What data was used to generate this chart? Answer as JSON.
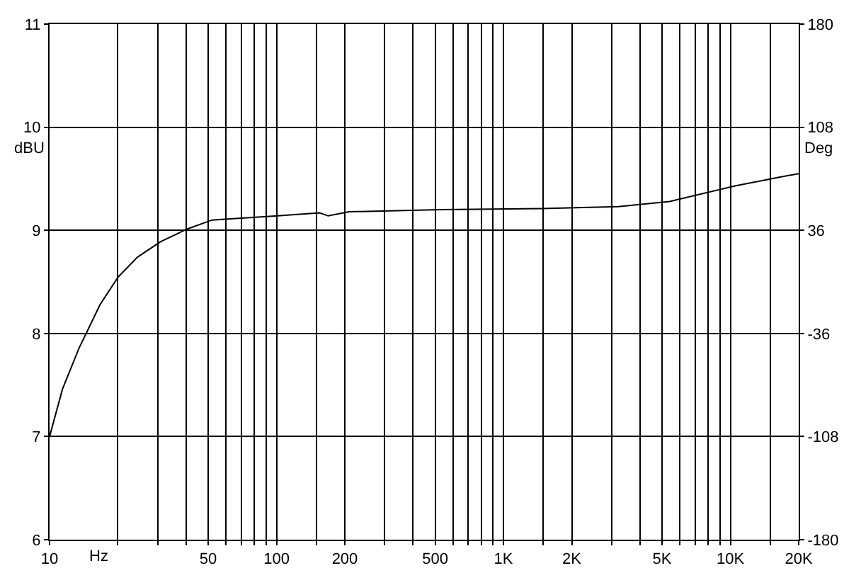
{
  "chart_data": {
    "type": "line",
    "xlabel": "Hz",
    "ylabel": "dBU",
    "y2label": "Deg",
    "x": [
      10,
      11.4,
      13.5,
      14.5,
      16.7,
      20.1,
      24.4,
      30.9,
      40.1,
      52,
      72,
      101,
      155,
      169,
      209,
      527,
      1468,
      3210,
      5400,
      10480,
      16860,
      20000
    ],
    "series": [
      {
        "color": "#000000",
        "values": [
          7.0,
          7.46,
          7.86,
          8.0,
          8.28,
          8.55,
          8.74,
          8.89,
          9.01,
          9.1,
          9.12,
          9.14,
          9.17,
          9.14,
          9.18,
          9.2,
          9.21,
          9.23,
          9.28,
          9.43,
          9.52,
          9.55
        ]
      }
    ],
    "log": "x",
    "grid": true,
    "marker": "none",
    "line_style": "solid",
    "xlim": [
      10,
      20000
    ],
    "xticks": [
      10,
      {
        "value": 20,
        "label": null
      },
      {
        "value": 30,
        "label": null
      },
      {
        "value": 40,
        "label": null
      },
      50,
      {
        "value": 60,
        "label": null
      },
      {
        "value": 70,
        "label": null
      },
      {
        "value": 80,
        "label": null
      },
      {
        "value": 90,
        "label": null
      },
      100,
      {
        "value": 150,
        "label": null
      },
      200,
      {
        "value": 300,
        "label": null
      },
      {
        "value": 400,
        "label": null
      },
      500,
      {
        "value": 600,
        "label": null
      },
      {
        "value": 700,
        "label": null
      },
      {
        "value": 800,
        "label": null
      },
      {
        "value": 900,
        "label": null
      },
      {
        "value": 1000,
        "label": "1K"
      },
      {
        "value": 1500,
        "label": null
      },
      {
        "value": 2000,
        "label": "2K"
      },
      {
        "value": 3000,
        "label": null
      },
      {
        "value": 4000,
        "label": null
      },
      {
        "value": 5000,
        "label": "5K"
      },
      {
        "value": 6000,
        "label": null
      },
      {
        "value": 7000,
        "label": null
      },
      {
        "value": 8000,
        "label": null
      },
      {
        "value": 9000,
        "label": null
      },
      {
        "value": 10000,
        "label": "10K"
      },
      {
        "value": 15000,
        "label": null
      },
      {
        "value": 20000,
        "label": "20K"
      }
    ],
    "ylim": [
      6,
      11
    ],
    "yticks": [
      6,
      7,
      8,
      9,
      10,
      11
    ],
    "y2lim": [
      -180,
      180
    ],
    "y2ticks": [
      -180,
      -108,
      -36,
      36,
      108,
      180
    ]
  }
}
